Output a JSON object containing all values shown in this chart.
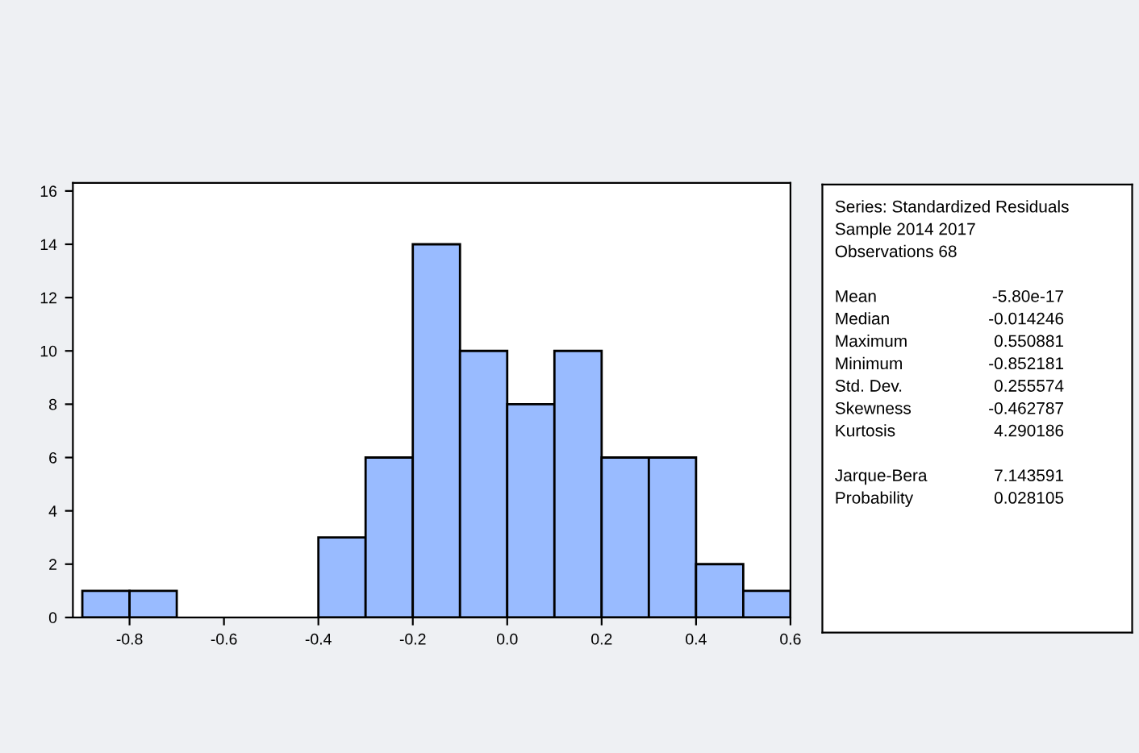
{
  "chart_data": {
    "type": "histogram",
    "color": "#99bbff",
    "bins": [
      -0.9,
      -0.8,
      -0.7,
      -0.6,
      -0.5,
      -0.4,
      -0.3,
      -0.2,
      -0.1,
      0.0,
      0.1,
      0.2,
      0.3,
      0.4,
      0.5,
      0.6
    ],
    "values": [
      1,
      1,
      0,
      0,
      0,
      3,
      6,
      14,
      10,
      8,
      10,
      6,
      6,
      2,
      1
    ],
    "xlim": [
      -0.92,
      0.6
    ],
    "ylim": [
      0,
      16.3
    ],
    "xticks": [
      {
        "value": -0.8,
        "label": "-0.8"
      },
      {
        "value": -0.6,
        "label": "-0.6"
      },
      {
        "value": -0.4,
        "label": "-0.4"
      },
      {
        "value": -0.2,
        "label": "-0.2"
      },
      {
        "value": 0.0,
        "label": "0.0"
      },
      {
        "value": 0.2,
        "label": "0.2"
      },
      {
        "value": 0.4,
        "label": "0.4"
      },
      {
        "value": 0.6,
        "label": "0.6"
      }
    ],
    "yticks": [
      0,
      2,
      4,
      6,
      8,
      10,
      12,
      14,
      16
    ],
    "grid": false,
    "annotations": [
      "Series: Standardized Residuals",
      "Sample 2014 2017",
      "Observations 68",
      "Mean",
      "-5.80e-17",
      "Median",
      "-0.014246",
      "Maximum",
      "0.550881",
      "Minimum",
      "-0.852181",
      "Std. Dev.",
      "0.255574",
      "Skewness",
      "-0.462787",
      "Kurtosis",
      "4.290186",
      "Jarque-Bera",
      "7.143591",
      "Probability",
      "0.028105"
    ]
  }
}
